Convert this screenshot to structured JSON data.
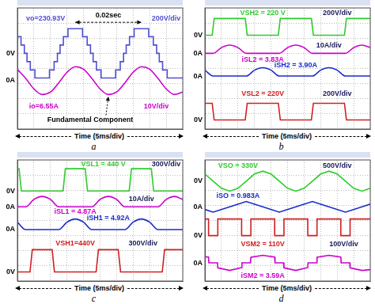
{
  "chart_data": [
    {
      "type": "line",
      "caption": "a",
      "x_label": "Time (5ms/div)",
      "xlim": [
        0,
        50
      ],
      "xticks": [
        0,
        5,
        10,
        15,
        20,
        25,
        30,
        35,
        40,
        45,
        50
      ],
      "ylim": [
        0,
        8
      ],
      "yticks": [
        0,
        1,
        2,
        3,
        4,
        5,
        6,
        7,
        8
      ],
      "grid": true,
      "tick_labels": false,
      "series": [
        {
          "color": "#5050d0",
          "line_style": "stepped",
          "zero": 5,
          "zero_label": "0V",
          "x": [
            0,
            1.1,
            2.1,
            2.9,
            3.9,
            5.3,
            9.7,
            11.1,
            12.1,
            12.9,
            13.9,
            15.3,
            19.7,
            21.1,
            22.1,
            22.9,
            23.9,
            25.3,
            29.7,
            31.1,
            32.1,
            32.9,
            33.9,
            35.3,
            39.7,
            41.1,
            42.1,
            42.9,
            43.9,
            45.3,
            50
          ],
          "values": [
            6.1,
            5.55,
            5,
            4.45,
            3.9,
            3.37,
            3.9,
            4.45,
            5,
            5.55,
            6.1,
            6.63,
            6.1,
            5.55,
            5,
            4.45,
            3.9,
            3.37,
            3.9,
            4.45,
            5,
            5.55,
            6.1,
            6.63,
            6.1,
            5.55,
            5,
            4.45,
            3.9,
            3.37,
            3.37
          ]
        },
        {
          "color": "#cc00cc",
          "line_style": "smooth",
          "zero": 3.2,
          "zero_label": "0A",
          "x": [
            0,
            2.5,
            5,
            7.5,
            10,
            12.5,
            15,
            17.5,
            20,
            22.5,
            25,
            27.5,
            30,
            32.5,
            35,
            37.5,
            40,
            42.5,
            45,
            47.5,
            50
          ],
          "values": [
            3.95,
            3.35,
            2.65,
            2.28,
            2.45,
            3.05,
            3.75,
            4.12,
            3.95,
            3.35,
            2.65,
            2.28,
            2.45,
            3.05,
            3.75,
            4.12,
            3.95,
            3.35,
            2.65,
            2.28,
            2.45
          ]
        }
      ],
      "annotations": [
        {
          "text": "0.02sec",
          "x": 27.5,
          "y": 7.5,
          "color": "#000000",
          "span": {
            "x": [
              17.5,
              37.5
            ],
            "y": 7.05
          }
        },
        {
          "text": "vo=230.93V",
          "x": 8.5,
          "y": 7.3,
          "color": "#5050d0"
        },
        {
          "text": "200V/div",
          "x": 45,
          "y": 7.3,
          "color": "#5050d0"
        },
        {
          "text": "io=6.55A",
          "x": 8,
          "y": 1.5,
          "color": "#cc00cc"
        },
        {
          "text": "10V/div",
          "x": 42,
          "y": 1.5,
          "color": "#cc00cc"
        },
        {
          "text": "Fundamental Component",
          "x": 22,
          "y": 0.6,
          "color": "#000000",
          "arrow": [
            27.5,
            2.15
          ]
        }
      ]
    },
    {
      "type": "line",
      "caption": "b",
      "x_label": "Time (5ms/div)",
      "xlim": [
        0,
        50
      ],
      "xticks": [
        0,
        5,
        10,
        15,
        20,
        25,
        30,
        35,
        40,
        45,
        50
      ],
      "ylim": [
        0,
        8
      ],
      "yticks": [
        0,
        1,
        2,
        3,
        4,
        5,
        6,
        7,
        8
      ],
      "grid": true,
      "tick_labels": false,
      "series": [
        {
          "color": "#2ecc2e",
          "line_style": "straight",
          "zero": 6.2,
          "zero_label": "0V",
          "x": [
            0,
            2.2,
            2.8,
            12.2,
            12.8,
            22.2,
            22.8,
            32.2,
            32.8,
            42.2,
            42.8,
            50
          ],
          "values": [
            6.2,
            6.2,
            7.3,
            7.3,
            6.2,
            6.2,
            7.3,
            7.3,
            6.2,
            6.2,
            7.3,
            7.3
          ]
        },
        {
          "color": "#cc00cc",
          "line_style": "smooth",
          "zero": 5,
          "zero_label": "0A",
          "x": [
            0,
            2.5,
            5,
            7.5,
            10,
            12.5,
            22.5,
            25,
            27.5,
            30,
            32.5,
            42.5,
            45,
            47.5,
            50
          ],
          "values": [
            5,
            5,
            5.38,
            5.54,
            5.38,
            5,
            5,
            5.38,
            5.54,
            5.38,
            5,
            5,
            5.38,
            5.54,
            5.38
          ]
        },
        {
          "color": "#1a2ccc",
          "line_style": "smooth",
          "zero": 3.5,
          "zero_label": "0A",
          "x": [
            0,
            2.5,
            12.5,
            15,
            17.5,
            20,
            22.5,
            32.5,
            35,
            37.5,
            40,
            42.5,
            50
          ],
          "values": [
            3.89,
            3.5,
            3.5,
            3.89,
            4.05,
            3.89,
            3.5,
            3.5,
            3.89,
            4.05,
            3.89,
            3.5,
            3.5
          ]
        },
        {
          "color": "#d02020",
          "line_style": "straight",
          "zero": 0.6,
          "zero_label": "0V",
          "x": [
            0,
            2.2,
            2.8,
            12.2,
            12.8,
            22.2,
            22.8,
            32.2,
            32.8,
            42.2,
            42.8,
            50
          ],
          "values": [
            1.7,
            1.7,
            0.6,
            0.6,
            1.7,
            1.7,
            0.6,
            0.6,
            1.7,
            1.7,
            0.6,
            0.6
          ]
        }
      ],
      "annotations": [
        {
          "text": "VSH2 = 220 V",
          "x": 17.5,
          "y": 7.65,
          "color": "#2ecc2e"
        },
        {
          "text": "200V/div",
          "x": 40,
          "y": 7.65,
          "color": "#1a1a5a"
        },
        {
          "text": "iSL2 = 3.83A",
          "x": 17.5,
          "y": 4.55,
          "color": "#cc00cc"
        },
        {
          "text": "10A/div",
          "x": 37.5,
          "y": 5.5,
          "color": "#1a1a5a"
        },
        {
          "text": "iSH2 = 3.90A",
          "x": 27.5,
          "y": 4.2,
          "color": "#1a2ccc"
        },
        {
          "text": "VSL2 = 220V",
          "x": 17.5,
          "y": 2.3,
          "color": "#d02020"
        },
        {
          "text": "200V/div",
          "x": 40,
          "y": 2.3,
          "color": "#1a1a5a"
        }
      ]
    },
    {
      "type": "line",
      "caption": "c",
      "x_label": "Time (5ms/div)",
      "xlim": [
        0,
        50
      ],
      "xticks": [
        0,
        5,
        10,
        15,
        20,
        25,
        30,
        35,
        40,
        45,
        50
      ],
      "ylim": [
        0,
        8
      ],
      "yticks": [
        0,
        1,
        2,
        3,
        4,
        5,
        6,
        7,
        8
      ],
      "grid": true,
      "tick_labels": false,
      "series": [
        {
          "color": "#2ecc2e",
          "line_style": "straight",
          "zero": 5.95,
          "zero_label": "0V",
          "x": [
            0,
            0.5,
            1.2,
            13.8,
            14.5,
            20.5,
            21.2,
            33.8,
            34.5,
            40.5,
            41.2,
            50
          ],
          "values": [
            7.42,
            7.42,
            5.95,
            5.95,
            7.42,
            7.42,
            5.95,
            5.95,
            7.42,
            7.42,
            5.95,
            5.95
          ]
        },
        {
          "color": "#cc00cc",
          "line_style": "smooth",
          "zero": 4.9,
          "zero_label": "0A",
          "x": [
            0,
            2.5,
            5,
            7.5,
            10,
            12.5,
            22.5,
            25,
            27.5,
            30,
            32.5,
            42.5,
            45,
            47.5,
            50
          ],
          "values": [
            4.9,
            4.9,
            5.39,
            5.59,
            5.39,
            4.9,
            4.9,
            5.39,
            5.59,
            5.39,
            4.9,
            4.9,
            5.39,
            5.59,
            5.39
          ]
        },
        {
          "color": "#1a2ccc",
          "line_style": "smooth",
          "zero": 3.4,
          "zero_label": "0A",
          "x": [
            0,
            2.5,
            12.5,
            15,
            17.5,
            20,
            22.5,
            32.5,
            35,
            37.5,
            40,
            42.5,
            50
          ],
          "values": [
            3.89,
            3.4,
            3.4,
            3.89,
            4.1,
            3.89,
            3.4,
            3.4,
            3.89,
            4.1,
            3.89,
            3.4,
            3.4
          ]
        },
        {
          "color": "#d02020",
          "line_style": "straight",
          "zero": 0.6,
          "zero_label": "0V",
          "x": [
            0,
            3.8,
            4.5,
            10.5,
            11.2,
            23.8,
            24.5,
            30.5,
            31.2,
            43.8,
            44.5,
            50
          ],
          "values": [
            0.6,
            0.6,
            2.07,
            2.07,
            0.6,
            0.6,
            2.07,
            2.07,
            0.6,
            0.6,
            2.07,
            2.07
          ]
        }
      ],
      "annotations": [
        {
          "text": "VSL1 = 440 V",
          "x": 26,
          "y": 7.72,
          "color": "#2ecc2e"
        },
        {
          "text": "300V/div",
          "x": 45,
          "y": 7.72,
          "color": "#1a1a5a"
        },
        {
          "text": "iSL1 = 4.87A",
          "x": 17.5,
          "y": 4.6,
          "color": "#cc00cc"
        },
        {
          "text": "10A/div",
          "x": 37.5,
          "y": 5.4,
          "color": "#1a1a5a"
        },
        {
          "text": "iSH1 = 4.92A",
          "x": 27.5,
          "y": 4.15,
          "color": "#1a2ccc"
        },
        {
          "text": "VSH1=440V",
          "x": 17.5,
          "y": 2.5,
          "color": "#d02020"
        },
        {
          "text": "300V/div",
          "x": 38,
          "y": 2.5,
          "color": "#1a1a5a"
        }
      ]
    },
    {
      "type": "line",
      "caption": "d",
      "x_label": "Time (5ms/div)",
      "xlim": [
        0,
        50
      ],
      "xticks": [
        0,
        5,
        10,
        15,
        20,
        25,
        30,
        35,
        40,
        45,
        50
      ],
      "ylim": [
        0,
        8
      ],
      "yticks": [
        0,
        1,
        2,
        3,
        4,
        5,
        6,
        7,
        8
      ],
      "grid": true,
      "tick_labels": false,
      "series": [
        {
          "color": "#2ecc2e",
          "line_style": "straight",
          "zero": 6.6,
          "zero_label": "0V",
          "x": [
            0,
            2.5,
            5,
            7.5,
            10,
            12.5,
            15,
            17.5,
            20,
            22.5,
            25,
            27.5,
            30,
            32.5,
            35,
            37.5,
            40,
            42.5,
            45,
            47.5,
            50
          ],
          "values": [
            7.07,
            6.6,
            6.13,
            5.94,
            6.13,
            6.6,
            7.07,
            7.26,
            7.07,
            6.6,
            6.13,
            5.94,
            6.13,
            6.6,
            7.07,
            7.26,
            7.07,
            6.6,
            6.13,
            5.94,
            6.13
          ]
        },
        {
          "color": "#1a2ccc",
          "line_style": "straight",
          "zero": 4.9,
          "zero_label": "0A",
          "x": [
            0,
            2.5,
            7.5,
            12.5,
            17.5,
            22.5,
            27.5,
            32.5,
            37.5,
            42.5,
            47.5,
            50
          ],
          "values": [
            4.73,
            4.55,
            4.9,
            5.25,
            4.9,
            4.55,
            4.9,
            5.25,
            4.9,
            4.55,
            4.9,
            5.08
          ]
        },
        {
          "color": "#d02020",
          "line_style": "stepped",
          "zero": 3,
          "zero_label": "0V",
          "x": [
            0,
            1.1,
            3.9,
            11.1,
            13.9,
            21.1,
            23.9,
            31.1,
            33.9,
            41.1,
            43.9,
            50
          ],
          "values": [
            4.1,
            3,
            4.1,
            3,
            4.1,
            3,
            4.1,
            3,
            4.1,
            3,
            4.1,
            4.1
          ]
        },
        {
          "color": "#cc00cc",
          "line_style": "straight",
          "zero": 1.2,
          "zero_label": "0A",
          "x": [
            0,
            1.1,
            1.2,
            3.8,
            3.9,
            7.5,
            11.1,
            11.2,
            13.8,
            13.9,
            17.5,
            21.1,
            21.2,
            23.8,
            23.9,
            27.5,
            31.1,
            31.2,
            33.8,
            33.9,
            37.5,
            41.1,
            41.2,
            43.8,
            43.9,
            47.5,
            50
          ],
          "values": [
            1.6,
            1.58,
            1.2,
            1.2,
            0.87,
            0.7,
            0.89,
            1.2,
            1.2,
            1.57,
            1.7,
            1.58,
            1.2,
            1.2,
            0.87,
            0.7,
            0.89,
            1.2,
            1.2,
            1.57,
            1.7,
            1.58,
            1.2,
            1.2,
            0.87,
            0.7,
            0.75
          ]
        }
      ],
      "annotations": [
        {
          "text": "VSO = 330V",
          "x": 10,
          "y": 7.6,
          "color": "#2ecc2e"
        },
        {
          "text": "500V/div",
          "x": 40,
          "y": 7.6,
          "color": "#1a1a5a"
        },
        {
          "text": "iSO = 0.983A",
          "x": 10,
          "y": 5.6,
          "color": "#1a2ccc"
        },
        {
          "text": "VSM2 = 110V",
          "x": 17.5,
          "y": 2.45,
          "color": "#d02020"
        },
        {
          "text": "100V/div",
          "x": 42,
          "y": 2.45,
          "color": "#1a1a5a"
        },
        {
          "text": "iSM2 = 3.59A",
          "x": 17.5,
          "y": 0.35,
          "color": "#cc00cc"
        }
      ]
    }
  ]
}
